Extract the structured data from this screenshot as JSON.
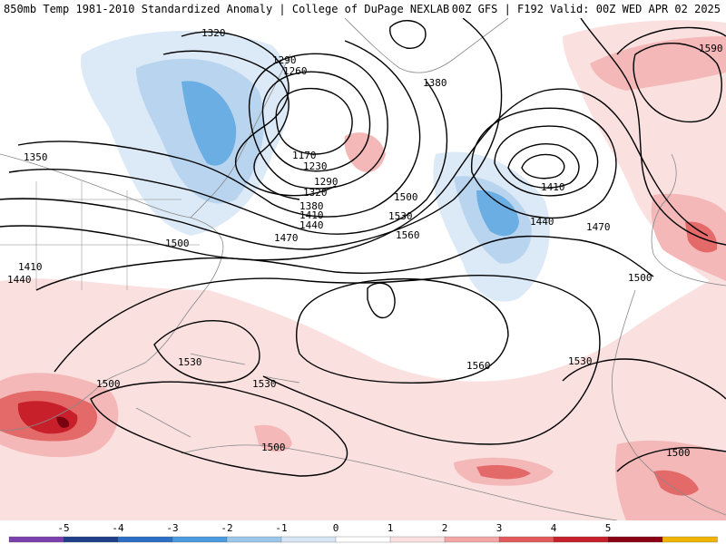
{
  "header": {
    "title": "850mb Temp 1981-2010 Standardized Anomaly | College of DuPage NEXLAB",
    "valid": "00Z GFS | F192 Valid: 00Z WED APR 02 2025"
  },
  "map": {
    "contour_labels": [
      "1320",
      "1290",
      "1260",
      "1380",
      "1350",
      "1170",
      "1230",
      "1290",
      "1320",
      "1380",
      "1410",
      "1440",
      "1470",
      "1500",
      "1500",
      "1530",
      "1560",
      "1410",
      "1440",
      "1470",
      "1590",
      "1500",
      "1410",
      "1440",
      "1530",
      "1530",
      "1500",
      "1560",
      "1530",
      "1500",
      "1500"
    ],
    "colors": {
      "neg_strong": "#2f8bd8",
      "neg_mid": "#6aaee3",
      "neg_weak": "#b9d4ee",
      "neg_faint": "#dce9f6",
      "pos_faint": "#fbe0e0",
      "pos_weak": "#f4b8b8",
      "pos_mid": "#e46a6a",
      "pos_strong": "#c8202a",
      "pos_max": "#7a0010",
      "land": "#888888",
      "contour": "#000000"
    }
  },
  "colorbar": {
    "ticks": [
      "-5",
      "-4",
      "-3",
      "-2",
      "-1",
      "0",
      "1",
      "2",
      "3",
      "4",
      "5"
    ],
    "colors": [
      "#7b3fb0",
      "#1f3f8a",
      "#2d6fc4",
      "#4a9be0",
      "#9cc6ec",
      "#d6e6f5",
      "#ffffff",
      "#fbe0e0",
      "#f4a6a6",
      "#e45a5a",
      "#c8202a",
      "#8a0014",
      "#f0b400"
    ]
  }
}
